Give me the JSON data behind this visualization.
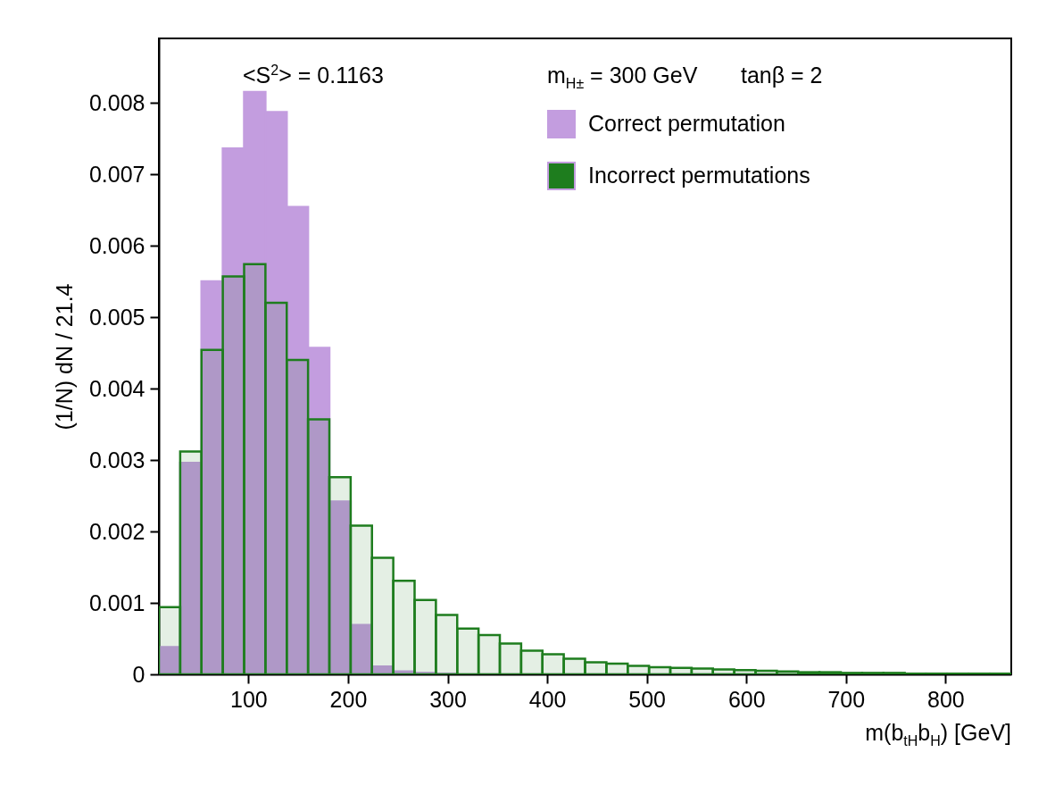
{
  "chart_data": {
    "type": "histogram",
    "xlabel": "m(b$_{tH}$b$_{H}$) [GeV]",
    "ylabel": "(1/N) dN / 21.4",
    "bins": [
      10,
      31.4,
      52.8,
      74.2,
      95.6,
      117,
      138.4,
      159.8,
      181.2,
      202.6,
      224,
      245.4,
      266.8,
      288.2,
      309.6,
      331,
      352.4,
      373.8,
      395.2,
      416.6,
      438,
      459.4,
      480.8,
      502.2,
      523.6,
      545,
      566.4,
      587.8,
      609.2,
      630.6,
      652,
      673.4,
      694.8,
      716.2,
      737.6,
      759,
      780.4,
      801.8,
      823.2,
      844.6,
      866
    ],
    "series": [
      {
        "name": "Correct permutation",
        "color": "#c39ddf",
        "values": [
          0.00038,
          0.00296,
          0.0055,
          0.00736,
          0.00815,
          0.00787,
          0.00654,
          0.00457,
          0.00242,
          0.00069,
          0.00011,
          4e-05,
          2e-05,
          1e-05,
          0,
          0,
          0,
          0,
          0,
          0,
          0,
          0,
          0,
          0,
          0,
          0,
          0,
          0,
          0,
          0,
          0,
          0,
          0,
          0,
          0,
          0,
          0,
          0,
          0,
          0
        ]
      },
      {
        "name": "Incorrect permutations",
        "color": "#1e7d1e",
        "values": [
          0.00094,
          0.00312,
          0.00454,
          0.00557,
          0.00574,
          0.0052,
          0.0044,
          0.00357,
          0.00276,
          0.00208,
          0.00163,
          0.00131,
          0.00104,
          0.00083,
          0.00064,
          0.00055,
          0.00043,
          0.00033,
          0.00028,
          0.00022,
          0.00017,
          0.00015,
          0.00012,
          0.0001,
          9e-05,
          8e-05,
          7e-05,
          6e-05,
          5e-05,
          4e-05,
          3e-05,
          3e-05,
          2e-05,
          2e-05,
          2e-05,
          1e-05,
          1e-05,
          1e-05,
          1e-05,
          1e-05
        ]
      }
    ],
    "xlim": [
      10,
      866
    ],
    "xticks": [
      100,
      200,
      300,
      400,
      500,
      600,
      700,
      800
    ],
    "ylim": [
      0,
      0.0089
    ],
    "yticks": [
      0,
      0.001,
      0.002,
      0.003,
      0.004,
      0.005,
      0.006,
      0.007,
      0.008
    ],
    "legend": "top right",
    "annotations": [
      "<S$^{2}$> = 0.1163",
      "m$_{H±}$ = 300 GeV",
      "tanβ = 2"
    ]
  }
}
